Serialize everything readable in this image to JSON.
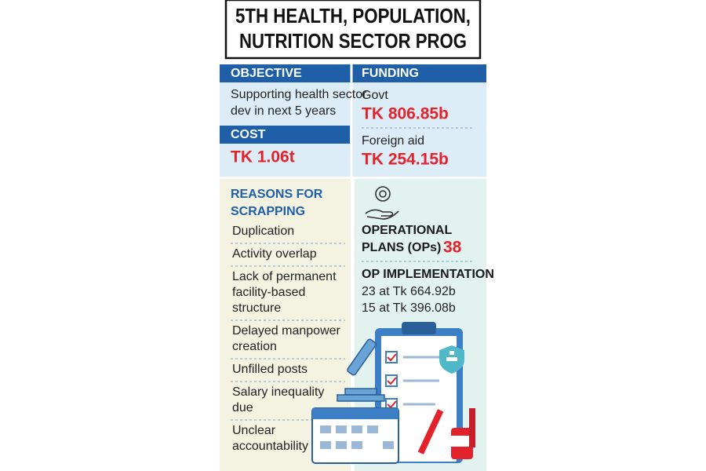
{
  "header": {
    "title_lines": [
      "5TH HEALTH, POPULATION,",
      "NUTRITION SECTOR PROG"
    ]
  },
  "objective": {
    "heading": "OBJECTIVE",
    "text": [
      "Supporting health sector",
      "dev in next 5 years"
    ]
  },
  "cost": {
    "heading": "COST",
    "value": "TK 1.06t"
  },
  "funding": {
    "heading": "FUNDING",
    "items": [
      {
        "label": "Govt",
        "value": "TK 806.85b"
      },
      {
        "label": "Foreign aid",
        "value": "TK 254.15b"
      }
    ]
  },
  "reasons": {
    "heading": [
      "REASONS FOR",
      "SCRAPPING"
    ],
    "items": [
      [
        "Duplication"
      ],
      [
        "Activity overlap"
      ],
      [
        "Lack of permanent",
        "facility-based",
        "structure"
      ],
      [
        "Delayed manpower",
        "creation"
      ],
      [
        "Unfilled posts"
      ],
      [
        "Salary inequality",
        "due"
      ],
      [
        "Unclear",
        "accountability"
      ]
    ]
  },
  "operational_plans": {
    "label": [
      "OPERATIONAL",
      "PLANS (OPs)"
    ],
    "value": 38
  },
  "op_implementation": {
    "heading": "OP IMPLEMENTATION",
    "lines": [
      "23 at Tk 664.92b",
      "15 at Tk 396.08b"
    ]
  }
}
